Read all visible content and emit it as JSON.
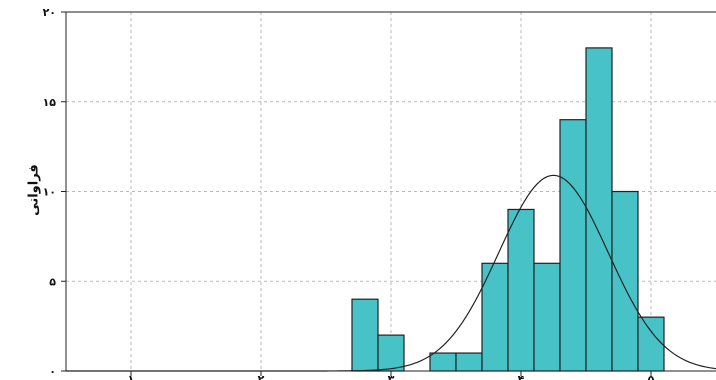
{
  "chart_data": {
    "type": "bar",
    "ylabel": "فراوانی",
    "xlabel": "",
    "title": "",
    "grid": true,
    "xlim": [
      0.5,
      5.5
    ],
    "ylim": [
      0,
      20
    ],
    "x_ticks": [
      1,
      2,
      3,
      4,
      5
    ],
    "x_tick_labels": [
      "۱",
      "۲",
      "۳",
      "۴",
      "۵"
    ],
    "y_ticks": [
      0,
      5,
      10,
      15,
      20
    ],
    "y_tick_labels": [
      "۰",
      "۵",
      "۱۰",
      "۱۵",
      "۲۰"
    ],
    "bin_width": 0.2,
    "bins": [
      {
        "x0": 2.7,
        "x1": 2.9,
        "count": 4
      },
      {
        "x0": 2.9,
        "x1": 3.1,
        "count": 2
      },
      {
        "x0": 3.1,
        "x1": 3.3,
        "count": 0
      },
      {
        "x0": 3.3,
        "x1": 3.5,
        "count": 1
      },
      {
        "x0": 3.5,
        "x1": 3.7,
        "count": 1
      },
      {
        "x0": 3.7,
        "x1": 3.9,
        "count": 6
      },
      {
        "x0": 3.9,
        "x1": 4.1,
        "count": 9
      },
      {
        "x0": 4.1,
        "x1": 4.3,
        "count": 6
      },
      {
        "x0": 4.3,
        "x1": 4.5,
        "count": 14
      },
      {
        "x0": 4.5,
        "x1": 4.7,
        "count": 18
      },
      {
        "x0": 4.7,
        "x1": 4.9,
        "count": 10
      },
      {
        "x0": 4.9,
        "x1": 5.1,
        "count": 3
      }
    ],
    "normal_curve": {
      "mean": 4.25,
      "sd": 0.42,
      "peak": 10.9
    },
    "colors": {
      "bar_fill": "#47c3c8",
      "bar_stroke": "#222222",
      "curve": "#222222",
      "grid": "#b9b9b9"
    }
  }
}
